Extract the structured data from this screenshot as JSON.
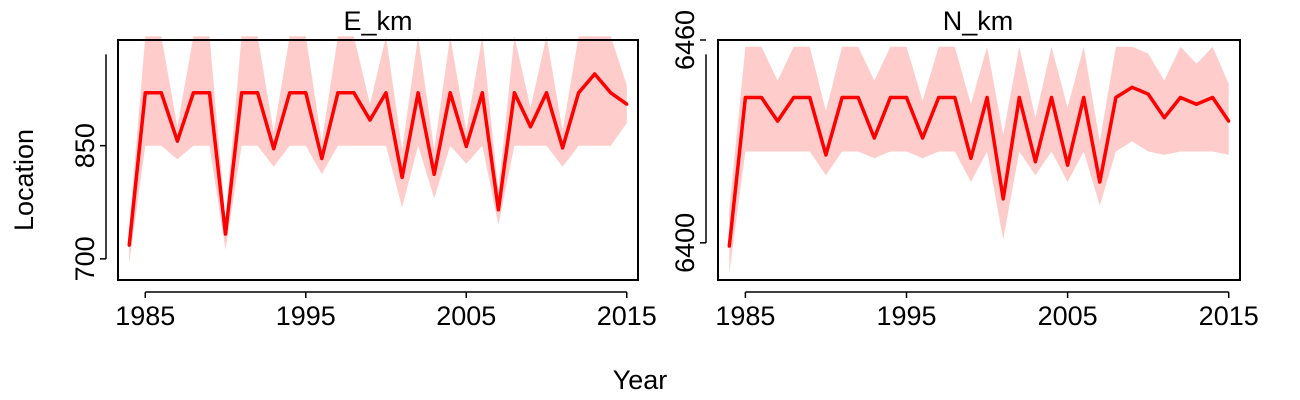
{
  "figure": {
    "xlabel": "Year",
    "ylabel": "Location"
  },
  "colors": {
    "line": "#ff0000",
    "band": "#ffcccc",
    "axis": "#000000"
  },
  "chart_data": [
    {
      "type": "line",
      "title": "E_km",
      "xlabel": "Year",
      "ylabel": "Location",
      "xlim": [
        1983.3,
        2015.7
      ],
      "ylim": [
        672,
        990
      ],
      "xticks": [
        1985,
        1995,
        2005,
        2015
      ],
      "xtick_labels": [
        "1985",
        "1995",
        "2005",
        "2015"
      ],
      "yticks": [
        700,
        850
      ],
      "ytick_labels": [
        "700",
        "850"
      ],
      "grid": false,
      "series": [
        {
          "x": [
            1984,
            1985,
            1986,
            1987,
            1988,
            1989,
            1990,
            1991,
            1992,
            1993,
            1994,
            1995,
            1996,
            1997,
            1998,
            1999,
            2000,
            2001,
            2002,
            2003,
            2004,
            2005,
            2006,
            2007,
            2008,
            2009,
            2010,
            2011,
            2012,
            2013,
            2014,
            2015
          ],
          "y": [
            718,
            920,
            920,
            856,
            920,
            920,
            733,
            920,
            920,
            846,
            920,
            920,
            833,
            920,
            920,
            884,
            920,
            808,
            920,
            812,
            920,
            849,
            920,
            765,
            920,
            875,
            920,
            847,
            920,
            945,
            920,
            905
          ],
          "lower": [
            694,
            850,
            850,
            832,
            850,
            850,
            712,
            850,
            850,
            822,
            850,
            850,
            812,
            850,
            850,
            850,
            850,
            768,
            850,
            780,
            850,
            826,
            850,
            745,
            850,
            850,
            850,
            822,
            850,
            850,
            850,
            880
          ],
          "upper": [
            740,
            995,
            995,
            875,
            995,
            995,
            752,
            995,
            995,
            868,
            995,
            995,
            855,
            995,
            995,
            905,
            995,
            845,
            995,
            845,
            995,
            870,
            995,
            790,
            995,
            900,
            995,
            870,
            995,
            995,
            995,
            930
          ]
        }
      ]
    },
    {
      "type": "line",
      "title": "N_km",
      "xlabel": "Year",
      "ylabel": "",
      "xlim": [
        1983.3,
        2015.7
      ],
      "ylim": [
        6389,
        6460
      ],
      "xticks": [
        1985,
        1995,
        2005,
        2015
      ],
      "xtick_labels": [
        "1985",
        "1995",
        "2005",
        "2015"
      ],
      "yticks": [
        6400,
        6460
      ],
      "ytick_labels": [
        "6400",
        "6460"
      ],
      "grid": false,
      "series": [
        {
          "x": [
            1984,
            1985,
            1986,
            1987,
            1988,
            1989,
            1990,
            1991,
            1992,
            1993,
            1994,
            1995,
            1996,
            1997,
            1998,
            1999,
            2000,
            2001,
            2002,
            2003,
            2004,
            2005,
            2006,
            2007,
            2008,
            2009,
            2010,
            2011,
            2012,
            2013,
            2014,
            2015
          ],
          "y": [
            6399,
            6443,
            6443,
            6436,
            6443,
            6443,
            6426,
            6443,
            6443,
            6431,
            6443,
            6443,
            6431,
            6443,
            6443,
            6425,
            6443,
            6413,
            6443,
            6424,
            6443,
            6423,
            6443,
            6418,
            6443,
            6446,
            6444,
            6437,
            6443,
            6441,
            6443,
            6436
          ],
          "lower": [
            6391,
            6427,
            6427,
            6427,
            6427,
            6427,
            6420,
            6427,
            6427,
            6425,
            6427,
            6427,
            6425,
            6427,
            6427,
            6418,
            6427,
            6401,
            6427,
            6420,
            6427,
            6418,
            6427,
            6411,
            6427,
            6430,
            6427,
            6426,
            6427,
            6427,
            6427,
            6426
          ],
          "upper": [
            6410,
            6458,
            6458,
            6448,
            6458,
            6458,
            6439,
            6458,
            6458,
            6448,
            6458,
            6458,
            6442,
            6458,
            6458,
            6441,
            6458,
            6432,
            6458,
            6437,
            6458,
            6440,
            6458,
            6430,
            6458,
            6458,
            6456,
            6448,
            6458,
            6453,
            6458,
            6447
          ]
        }
      ]
    }
  ]
}
